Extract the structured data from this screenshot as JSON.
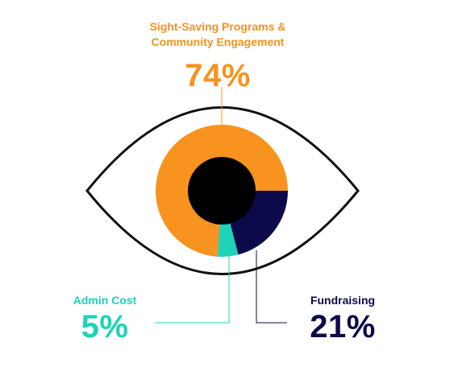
{
  "chart_data": {
    "type": "pie",
    "style": "donut-in-eye",
    "slices": [
      {
        "label": "Sight-Saving Programs & Community Engagement",
        "value": 74,
        "display": "74%",
        "color": "#f7931e"
      },
      {
        "label": "Fundraising",
        "value": 21,
        "display": "21%",
        "color": "#0d0a4b"
      },
      {
        "label": "Admin Cost",
        "value": 5,
        "display": "5%",
        "color": "#1dd3b8"
      }
    ],
    "title": "",
    "center_color": "#000000",
    "eye_outline_color": "#111111"
  },
  "labels": {
    "programs": {
      "line1": "Sight-Saving Programs &",
      "line2": "Community Engagement",
      "value": "74%"
    },
    "admin": {
      "label": "Admin Cost",
      "value": "5%"
    },
    "fundraising": {
      "label": "Fundraising",
      "value": "21%"
    }
  }
}
